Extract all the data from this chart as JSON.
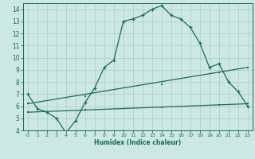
{
  "xlabel": "Humidex (Indice chaleur)",
  "xlim": [
    -0.5,
    23.5
  ],
  "ylim": [
    4,
    14.5
  ],
  "yticks": [
    4,
    5,
    6,
    7,
    8,
    9,
    10,
    11,
    12,
    13,
    14
  ],
  "xticks": [
    0,
    1,
    2,
    3,
    4,
    5,
    6,
    7,
    8,
    9,
    10,
    11,
    12,
    13,
    14,
    15,
    16,
    17,
    18,
    19,
    20,
    21,
    22,
    23
  ],
  "bg_color": "#cce8e0",
  "grid_color": "#aacec6",
  "line_color": "#1a6b5a",
  "line1_x": [
    0,
    1,
    2,
    3,
    4,
    5,
    6,
    7,
    8,
    9,
    10,
    11,
    12,
    13,
    14,
    15,
    16,
    17,
    18,
    19,
    20,
    21,
    22,
    23
  ],
  "line1_y": [
    7.0,
    5.8,
    5.5,
    5.0,
    3.8,
    4.8,
    6.3,
    7.5,
    9.2,
    9.8,
    13.0,
    13.2,
    13.5,
    14.0,
    14.3,
    13.5,
    13.2,
    12.5,
    11.2,
    9.2,
    9.5,
    8.0,
    7.2,
    6.0
  ],
  "line2_x": [
    0,
    23
  ],
  "line2_y": [
    6.2,
    9.2
  ],
  "line2_markers_x": [
    0,
    6,
    14,
    20,
    23
  ],
  "line2_markers_y": [
    6.2,
    6.8,
    7.8,
    8.8,
    9.2
  ],
  "line3_x": [
    0,
    23
  ],
  "line3_y": [
    5.5,
    6.2
  ],
  "line3_markers_x": [
    0,
    6,
    14,
    20,
    23
  ],
  "line3_markers_y": [
    5.5,
    5.7,
    5.9,
    6.1,
    6.2
  ]
}
